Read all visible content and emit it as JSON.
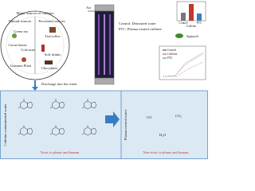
{
  "sources_circle": {
    "title": "Major sources of caffeine",
    "natural": "Natural sources",
    "processed": "Processed sources",
    "items": [
      "Green tea",
      "Tea/coffee",
      "Cacao beans",
      "Cola nuts",
      "Soft drinks",
      "Guarana Plant",
      "Chocolates"
    ]
  },
  "discharge": "Discharge into the water",
  "reactor": {
    "air": "Air",
    "legend": [
      "Control: Deionized water",
      "PTC: Plasma treated caffeine"
    ]
  },
  "plant": "Spinach",
  "bar_chart": {
    "categories": [
      "Control",
      "Caffeine",
      "PTC"
    ]
  },
  "line_chart": {
    "legend": [
      "Control",
      "Caffeine",
      "PTC"
    ]
  },
  "left_panel": {
    "side_label": "Caffeine contaminated water",
    "note": "Toxic to plants and human"
  },
  "right_panel": {
    "side_label": "Plasma treated water",
    "products": [
      "CO",
      "CO₂",
      "H₂O"
    ],
    "note": "Non-toxic to plants and human"
  }
}
